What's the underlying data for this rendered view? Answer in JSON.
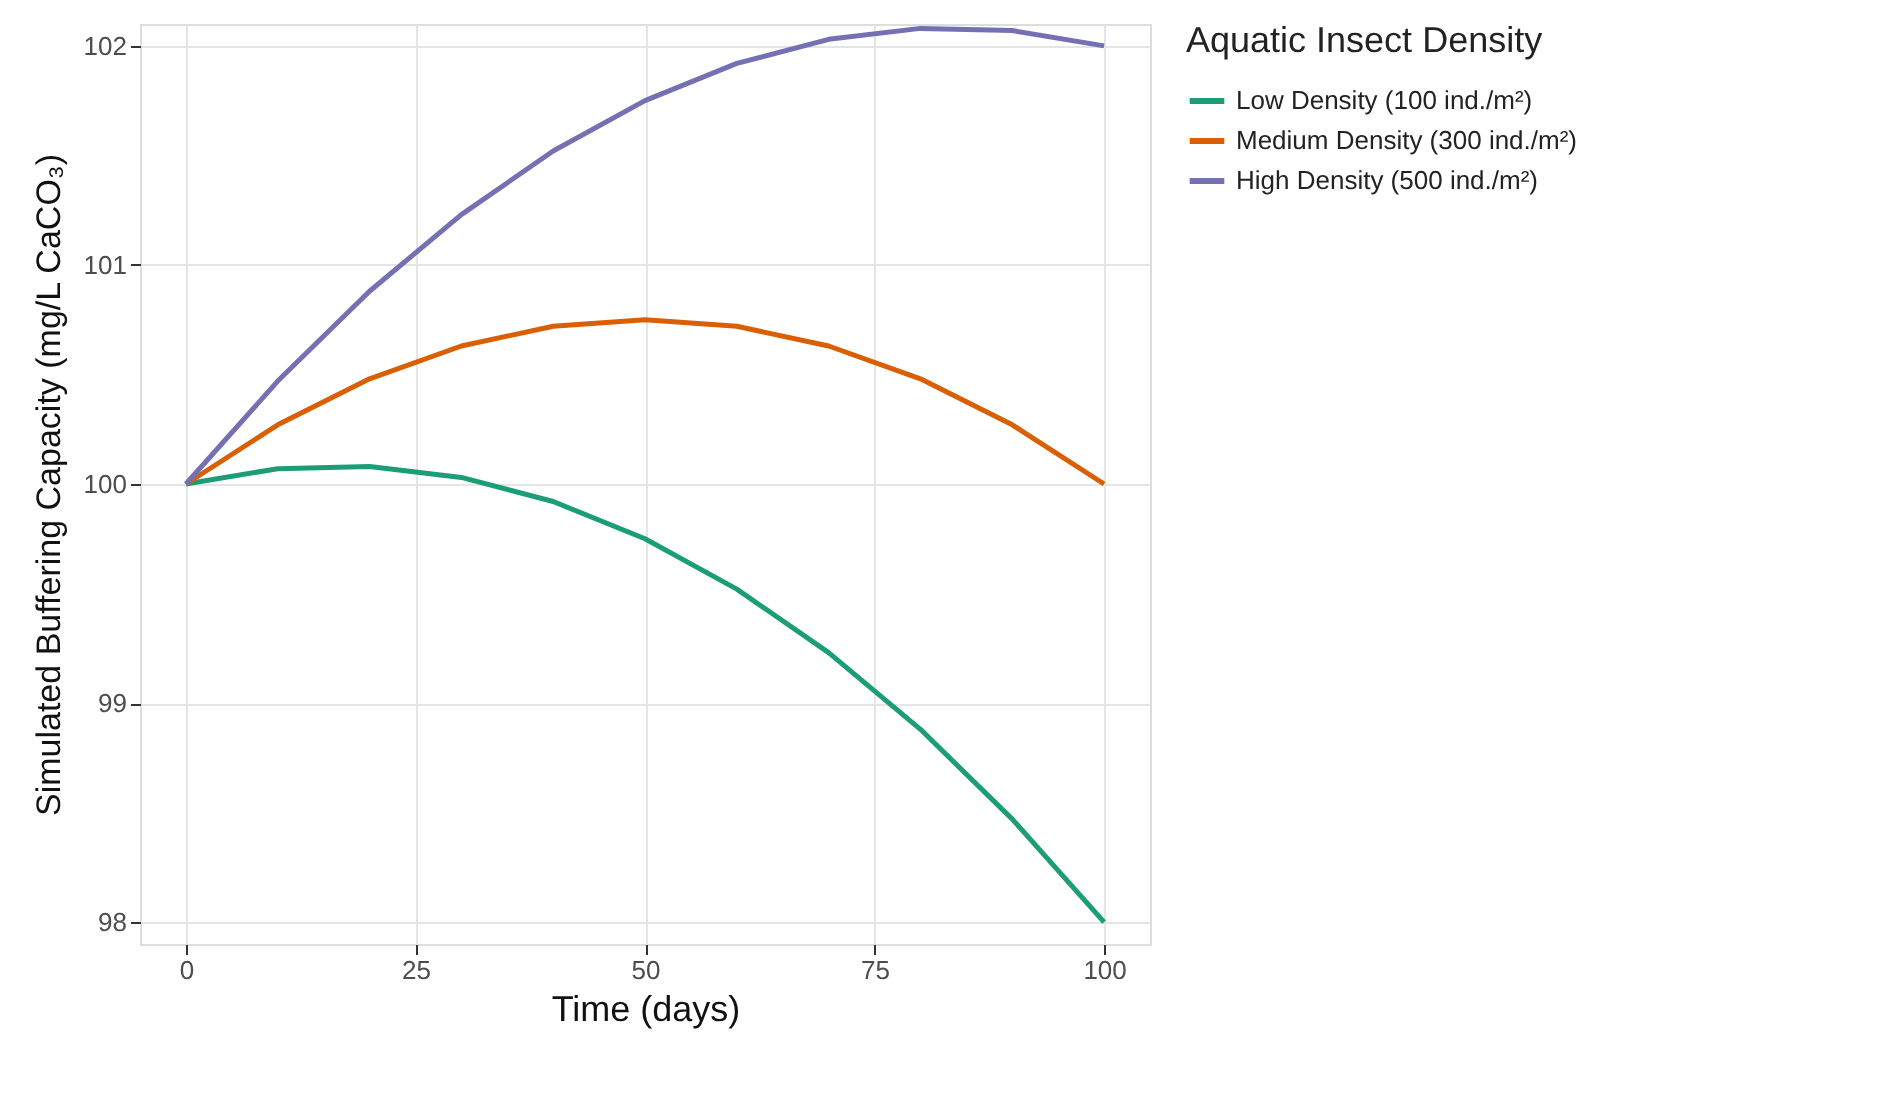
{
  "chart_data": {
    "type": "line",
    "xlabel": "Time (days)",
    "ylabel": "Simulated Buffering Capacity (mg/L CaCO₃)",
    "legend_title": "Aquatic Insect Density",
    "x": [
      0,
      10,
      20,
      30,
      40,
      50,
      60,
      70,
      80,
      90,
      100
    ],
    "series": [
      {
        "name": "Low Density (100 ind./m²)",
        "color": "#1b9e77",
        "values": [
          100,
          100.07,
          100.08,
          100.03,
          99.92,
          99.75,
          99.52,
          99.23,
          98.88,
          98.47,
          98.0
        ]
      },
      {
        "name": "Medium Density (300 ind./m²)",
        "color": "#d95f02",
        "values": [
          100,
          100.27,
          100.48,
          100.63,
          100.72,
          100.75,
          100.72,
          100.63,
          100.48,
          100.27,
          100.0
        ]
      },
      {
        "name": "High Density (500 ind./m²)",
        "color": "#7570b3",
        "values": [
          100,
          100.47,
          100.88,
          101.23,
          101.52,
          101.75,
          101.92,
          102.03,
          102.08,
          102.07,
          102.0
        ]
      }
    ],
    "xlim": [
      -5,
      105
    ],
    "xticks": [
      0,
      25,
      50,
      75,
      100
    ],
    "ylim": [
      97.9,
      102.1
    ],
    "yticks": [
      98,
      99,
      100,
      101,
      102
    ],
    "grid": true,
    "legend": "right",
    "marker": "none",
    "line_style": "solid"
  }
}
